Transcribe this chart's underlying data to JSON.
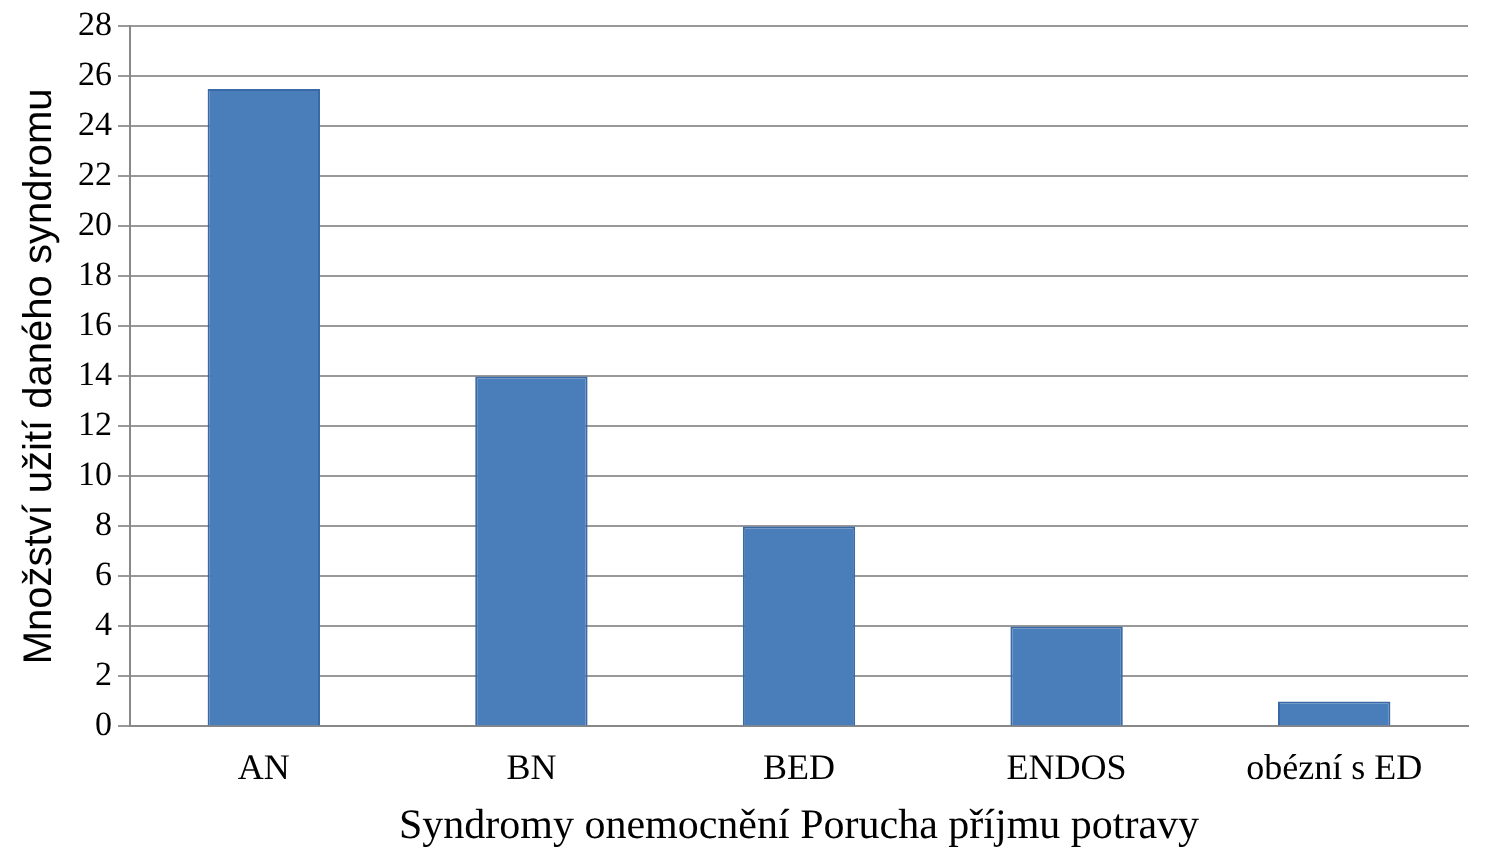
{
  "chart_data": {
    "type": "bar",
    "xlabel": "Syndromy onemocnění Porucha příjmu potravy",
    "ylabel": "Množství užití daného syndromu",
    "categories": [
      "AN",
      "BN",
      "BED",
      "ENDOS",
      "obézní s ED"
    ],
    "values": [
      25.5,
      14,
      8,
      4,
      1
    ],
    "color": "#4a7ebb",
    "ylim": [
      0,
      28
    ],
    "yticks": [
      0,
      2,
      4,
      6,
      8,
      10,
      12,
      14,
      16,
      18,
      20,
      22,
      24,
      26,
      28
    ],
    "grid": "y",
    "legend": false
  }
}
